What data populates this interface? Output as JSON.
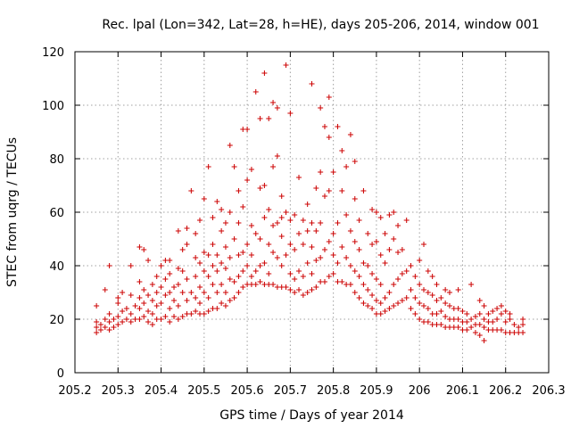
{
  "chart_data": {
    "type": "scatter",
    "title": "Rec. lpal (Lon=342, Lat=28, h=HE), days 205-206, 2014, window 001",
    "xlabel": "GPS time / Days of year 2014",
    "ylabel": "STEC from uqrg / TECUs",
    "xlim": [
      205.2,
      206.3
    ],
    "ylim": [
      0,
      120
    ],
    "xticks": [
      "205.2",
      "205.3",
      "205.4",
      "205.5",
      "205.6",
      "205.7",
      "205.8",
      "205.9",
      "206",
      "206.1",
      "206.2",
      "206.3"
    ],
    "yticks": [
      "0",
      "20",
      "40",
      "60",
      "80",
      "100",
      "120"
    ],
    "grid": true,
    "marker": "+",
    "color": "#cc0000",
    "points": [
      [
        205.25,
        15
      ],
      [
        205.25,
        17
      ],
      [
        205.25,
        19
      ],
      [
        205.25,
        25
      ],
      [
        205.26,
        16
      ],
      [
        205.26,
        18
      ],
      [
        205.27,
        17
      ],
      [
        205.27,
        20
      ],
      [
        205.27,
        31
      ],
      [
        205.28,
        16
      ],
      [
        205.28,
        19
      ],
      [
        205.28,
        22
      ],
      [
        205.28,
        40
      ],
      [
        205.29,
        17
      ],
      [
        205.29,
        20
      ],
      [
        205.3,
        18
      ],
      [
        205.3,
        21
      ],
      [
        205.3,
        26
      ],
      [
        205.3,
        28
      ],
      [
        205.31,
        19
      ],
      [
        205.31,
        23
      ],
      [
        205.31,
        30
      ],
      [
        205.32,
        20
      ],
      [
        205.32,
        24
      ],
      [
        205.33,
        19
      ],
      [
        205.33,
        22
      ],
      [
        205.33,
        29
      ],
      [
        205.33,
        40
      ],
      [
        205.34,
        20
      ],
      [
        205.34,
        25
      ],
      [
        205.35,
        20
      ],
      [
        205.35,
        24
      ],
      [
        205.35,
        28
      ],
      [
        205.35,
        34
      ],
      [
        205.35,
        47
      ],
      [
        205.36,
        21
      ],
      [
        205.36,
        26
      ],
      [
        205.36,
        31
      ],
      [
        205.36,
        46
      ],
      [
        205.37,
        19
      ],
      [
        205.37,
        23
      ],
      [
        205.37,
        29
      ],
      [
        205.37,
        42
      ],
      [
        205.38,
        18
      ],
      [
        205.38,
        22
      ],
      [
        205.38,
        27
      ],
      [
        205.38,
        33
      ],
      [
        205.39,
        20
      ],
      [
        205.39,
        25
      ],
      [
        205.39,
        30
      ],
      [
        205.39,
        36
      ],
      [
        205.4,
        20
      ],
      [
        205.4,
        26
      ],
      [
        205.4,
        32
      ],
      [
        205.4,
        40
      ],
      [
        205.41,
        21
      ],
      [
        205.41,
        29
      ],
      [
        205.41,
        35
      ],
      [
        205.41,
        42
      ],
      [
        205.42,
        19
      ],
      [
        205.42,
        24
      ],
      [
        205.42,
        30
      ],
      [
        205.42,
        37
      ],
      [
        205.42,
        42
      ],
      [
        205.43,
        21
      ],
      [
        205.43,
        27
      ],
      [
        205.43,
        32
      ],
      [
        205.44,
        20
      ],
      [
        205.44,
        25
      ],
      [
        205.44,
        33
      ],
      [
        205.44,
        39
      ],
      [
        205.44,
        53
      ],
      [
        205.45,
        21
      ],
      [
        205.45,
        30
      ],
      [
        205.45,
        38
      ],
      [
        205.45,
        46
      ],
      [
        205.46,
        22
      ],
      [
        205.46,
        27
      ],
      [
        205.46,
        35
      ],
      [
        205.46,
        48
      ],
      [
        205.46,
        54
      ],
      [
        205.47,
        22
      ],
      [
        205.47,
        30
      ],
      [
        205.47,
        68
      ],
      [
        205.48,
        23
      ],
      [
        205.48,
        28
      ],
      [
        205.48,
        36
      ],
      [
        205.48,
        43
      ],
      [
        205.48,
        52
      ],
      [
        205.49,
        22
      ],
      [
        205.49,
        26
      ],
      [
        205.49,
        32
      ],
      [
        205.49,
        41
      ],
      [
        205.49,
        57
      ],
      [
        205.5,
        22
      ],
      [
        205.5,
        30
      ],
      [
        205.5,
        38
      ],
      [
        205.5,
        45
      ],
      [
        205.5,
        65
      ],
      [
        205.51,
        23
      ],
      [
        205.51,
        28
      ],
      [
        205.51,
        36
      ],
      [
        205.51,
        44
      ],
      [
        205.51,
        77
      ],
      [
        205.52,
        24
      ],
      [
        205.52,
        33
      ],
      [
        205.52,
        40
      ],
      [
        205.52,
        48
      ],
      [
        205.52,
        58
      ],
      [
        205.53,
        24
      ],
      [
        205.53,
        30
      ],
      [
        205.53,
        38
      ],
      [
        205.53,
        44
      ],
      [
        205.53,
        64
      ],
      [
        205.54,
        26
      ],
      [
        205.54,
        33
      ],
      [
        205.54,
        41
      ],
      [
        205.54,
        53
      ],
      [
        205.54,
        61
      ],
      [
        205.55,
        25
      ],
      [
        205.55,
        30
      ],
      [
        205.55,
        39
      ],
      [
        205.55,
        47
      ],
      [
        205.55,
        56
      ],
      [
        205.56,
        27
      ],
      [
        205.56,
        35
      ],
      [
        205.56,
        43
      ],
      [
        205.56,
        60
      ],
      [
        205.56,
        85
      ],
      [
        205.57,
        28
      ],
      [
        205.57,
        34
      ],
      [
        205.57,
        50
      ],
      [
        205.57,
        77
      ],
      [
        205.58,
        30
      ],
      [
        205.58,
        36
      ],
      [
        205.58,
        44
      ],
      [
        205.58,
        56
      ],
      [
        205.58,
        68
      ],
      [
        205.59,
        32
      ],
      [
        205.59,
        38
      ],
      [
        205.59,
        45
      ],
      [
        205.59,
        62
      ],
      [
        205.59,
        91
      ],
      [
        205.6,
        33
      ],
      [
        205.6,
        40
      ],
      [
        205.6,
        48
      ],
      [
        205.6,
        72
      ],
      [
        205.6,
        91
      ],
      [
        205.61,
        33
      ],
      [
        205.61,
        36
      ],
      [
        205.61,
        44
      ],
      [
        205.61,
        55
      ],
      [
        205.61,
        76
      ],
      [
        205.62,
        33
      ],
      [
        205.62,
        38
      ],
      [
        205.62,
        52
      ],
      [
        205.62,
        105
      ],
      [
        205.63,
        34
      ],
      [
        205.63,
        40
      ],
      [
        205.63,
        50
      ],
      [
        205.63,
        69
      ],
      [
        205.63,
        95
      ],
      [
        205.64,
        33
      ],
      [
        205.64,
        41
      ],
      [
        205.64,
        58
      ],
      [
        205.64,
        70
      ],
      [
        205.64,
        112
      ],
      [
        205.65,
        33
      ],
      [
        205.65,
        37
      ],
      [
        205.65,
        48
      ],
      [
        205.65,
        61
      ],
      [
        205.65,
        95
      ],
      [
        205.66,
        33
      ],
      [
        205.66,
        45
      ],
      [
        205.66,
        55
      ],
      [
        205.66,
        77
      ],
      [
        205.66,
        101
      ],
      [
        205.67,
        32
      ],
      [
        205.67,
        43
      ],
      [
        205.67,
        56
      ],
      [
        205.67,
        81
      ],
      [
        205.67,
        99
      ],
      [
        205.68,
        32
      ],
      [
        205.68,
        40
      ],
      [
        205.68,
        51
      ],
      [
        205.68,
        58
      ],
      [
        205.68,
        66
      ],
      [
        205.69,
        32
      ],
      [
        205.69,
        44
      ],
      [
        205.69,
        60
      ],
      [
        205.69,
        115
      ],
      [
        205.7,
        31
      ],
      [
        205.7,
        37
      ],
      [
        205.7,
        48
      ],
      [
        205.7,
        57
      ],
      [
        205.7,
        97
      ],
      [
        205.71,
        30
      ],
      [
        205.71,
        35
      ],
      [
        205.71,
        46
      ],
      [
        205.71,
        59
      ],
      [
        205.72,
        31
      ],
      [
        205.72,
        38
      ],
      [
        205.72,
        52
      ],
      [
        205.72,
        73
      ],
      [
        205.73,
        29
      ],
      [
        205.73,
        36
      ],
      [
        205.73,
        48
      ],
      [
        205.73,
        57
      ],
      [
        205.74,
        30
      ],
      [
        205.74,
        41
      ],
      [
        205.74,
        53
      ],
      [
        205.74,
        63
      ],
      [
        205.75,
        31
      ],
      [
        205.75,
        37
      ],
      [
        205.75,
        47
      ],
      [
        205.75,
        56
      ],
      [
        205.75,
        108
      ],
      [
        205.76,
        32
      ],
      [
        205.76,
        42
      ],
      [
        205.76,
        53
      ],
      [
        205.76,
        69
      ],
      [
        205.77,
        34
      ],
      [
        205.77,
        43
      ],
      [
        205.77,
        56
      ],
      [
        205.77,
        75
      ],
      [
        205.77,
        99
      ],
      [
        205.78,
        34
      ],
      [
        205.78,
        46
      ],
      [
        205.78,
        66
      ],
      [
        205.78,
        92
      ],
      [
        205.79,
        36
      ],
      [
        205.79,
        49
      ],
      [
        205.79,
        68
      ],
      [
        205.79,
        88
      ],
      [
        205.79,
        103
      ],
      [
        205.8,
        37
      ],
      [
        205.8,
        44
      ],
      [
        205.8,
        52
      ],
      [
        205.8,
        75
      ],
      [
        205.81,
        34
      ],
      [
        205.81,
        41
      ],
      [
        205.81,
        56
      ],
      [
        205.81,
        92
      ],
      [
        205.82,
        34
      ],
      [
        205.82,
        47
      ],
      [
        205.82,
        68
      ],
      [
        205.82,
        83
      ],
      [
        205.83,
        33
      ],
      [
        205.83,
        43
      ],
      [
        205.83,
        59
      ],
      [
        205.83,
        77
      ],
      [
        205.84,
        33
      ],
      [
        205.84,
        40
      ],
      [
        205.84,
        53
      ],
      [
        205.84,
        89
      ],
      [
        205.85,
        30
      ],
      [
        205.85,
        38
      ],
      [
        205.85,
        49
      ],
      [
        205.85,
        65
      ],
      [
        205.85,
        79
      ],
      [
        205.86,
        28
      ],
      [
        205.86,
        36
      ],
      [
        205.86,
        46
      ],
      [
        205.86,
        57
      ],
      [
        205.87,
        26
      ],
      [
        205.87,
        33
      ],
      [
        205.87,
        41
      ],
      [
        205.87,
        68
      ],
      [
        205.88,
        25
      ],
      [
        205.88,
        31
      ],
      [
        205.88,
        40
      ],
      [
        205.88,
        52
      ],
      [
        205.89,
        24
      ],
      [
        205.89,
        29
      ],
      [
        205.89,
        37
      ],
      [
        205.89,
        48
      ],
      [
        205.89,
        61
      ],
      [
        205.9,
        22
      ],
      [
        205.9,
        27
      ],
      [
        205.9,
        35
      ],
      [
        205.9,
        49
      ],
      [
        205.9,
        60
      ],
      [
        205.91,
        22
      ],
      [
        205.91,
        26
      ],
      [
        205.91,
        33
      ],
      [
        205.91,
        44
      ],
      [
        205.91,
        58
      ],
      [
        205.92,
        23
      ],
      [
        205.92,
        28
      ],
      [
        205.92,
        41
      ],
      [
        205.92,
        52
      ],
      [
        205.93,
        24
      ],
      [
        205.93,
        30
      ],
      [
        205.93,
        46
      ],
      [
        205.93,
        59
      ],
      [
        205.94,
        25
      ],
      [
        205.94,
        33
      ],
      [
        205.94,
        50
      ],
      [
        205.94,
        60
      ],
      [
        205.95,
        26
      ],
      [
        205.95,
        35
      ],
      [
        205.95,
        45
      ],
      [
        205.95,
        55
      ],
      [
        205.96,
        27
      ],
      [
        205.96,
        37
      ],
      [
        205.96,
        46
      ],
      [
        205.97,
        28
      ],
      [
        205.97,
        38
      ],
      [
        205.97,
        57
      ],
      [
        205.98,
        24
      ],
      [
        205.98,
        31
      ],
      [
        205.98,
        40
      ],
      [
        205.99,
        22
      ],
      [
        205.99,
        28
      ],
      [
        205.99,
        36
      ],
      [
        206.0,
        20
      ],
      [
        206.0,
        26
      ],
      [
        206.0,
        33
      ],
      [
        206.0,
        42
      ],
      [
        206.01,
        19
      ],
      [
        206.01,
        25
      ],
      [
        206.01,
        31
      ],
      [
        206.01,
        48
      ],
      [
        206.02,
        19
      ],
      [
        206.02,
        24
      ],
      [
        206.02,
        30
      ],
      [
        206.02,
        38
      ],
      [
        206.03,
        18
      ],
      [
        206.03,
        22
      ],
      [
        206.03,
        29
      ],
      [
        206.03,
        36
      ],
      [
        206.04,
        18
      ],
      [
        206.04,
        22
      ],
      [
        206.04,
        27
      ],
      [
        206.04,
        33
      ],
      [
        206.05,
        18
      ],
      [
        206.05,
        23
      ],
      [
        206.05,
        28
      ],
      [
        206.06,
        17
      ],
      [
        206.06,
        21
      ],
      [
        206.06,
        26
      ],
      [
        206.06,
        31
      ],
      [
        206.07,
        17
      ],
      [
        206.07,
        20
      ],
      [
        206.07,
        25
      ],
      [
        206.07,
        30
      ],
      [
        206.08,
        17
      ],
      [
        206.08,
        20
      ],
      [
        206.08,
        24
      ],
      [
        206.09,
        17
      ],
      [
        206.09,
        20
      ],
      [
        206.09,
        24
      ],
      [
        206.09,
        31
      ],
      [
        206.1,
        16
      ],
      [
        206.1,
        19
      ],
      [
        206.1,
        23
      ],
      [
        206.11,
        16
      ],
      [
        206.11,
        19
      ],
      [
        206.11,
        22
      ],
      [
        206.12,
        17
      ],
      [
        206.12,
        20
      ],
      [
        206.12,
        33
      ],
      [
        206.13,
        15
      ],
      [
        206.13,
        18
      ],
      [
        206.13,
        21
      ],
      [
        206.14,
        14
      ],
      [
        206.14,
        18
      ],
      [
        206.14,
        22
      ],
      [
        206.14,
        27
      ],
      [
        206.15,
        12
      ],
      [
        206.15,
        17
      ],
      [
        206.15,
        20
      ],
      [
        206.15,
        25
      ],
      [
        206.16,
        16
      ],
      [
        206.16,
        19
      ],
      [
        206.16,
        22
      ],
      [
        206.17,
        16
      ],
      [
        206.17,
        19
      ],
      [
        206.17,
        23
      ],
      [
        206.18,
        16
      ],
      [
        206.18,
        20
      ],
      [
        206.18,
        24
      ],
      [
        206.19,
        16
      ],
      [
        206.19,
        22
      ],
      [
        206.19,
        25
      ],
      [
        206.2,
        15
      ],
      [
        206.2,
        19
      ],
      [
        206.2,
        23
      ],
      [
        206.21,
        15
      ],
      [
        206.21,
        20
      ],
      [
        206.21,
        22
      ],
      [
        206.22,
        15
      ],
      [
        206.22,
        18
      ],
      [
        206.23,
        15
      ],
      [
        206.23,
        17
      ],
      [
        206.24,
        15
      ],
      [
        206.24,
        18
      ],
      [
        206.24,
        20
      ]
    ]
  }
}
